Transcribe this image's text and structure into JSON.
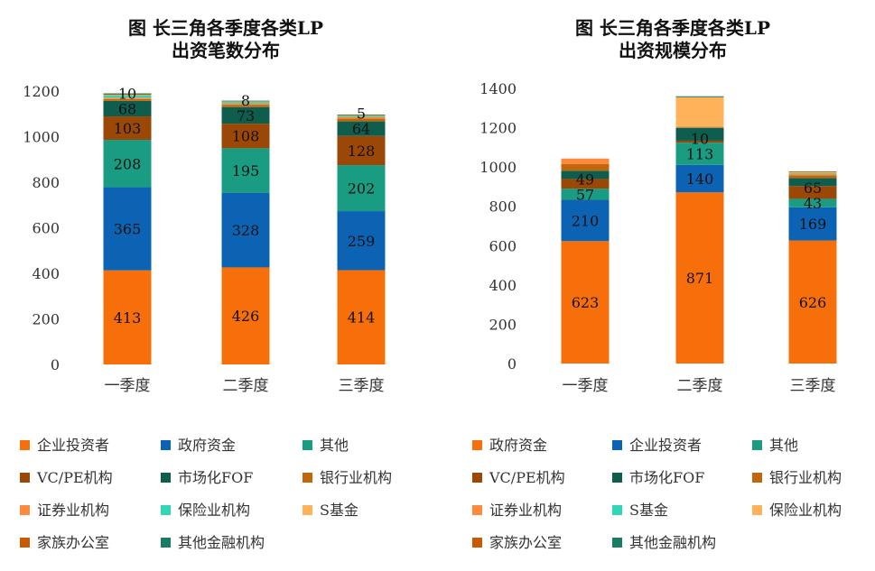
{
  "chart_data": [
    {
      "type": "bar",
      "stacked": true,
      "title": [
        "图 长三角各季度各类LP",
        "出资笔数分布"
      ],
      "categories": [
        "一季度",
        "二季度",
        "三季度"
      ],
      "ylim": [
        0,
        1200
      ],
      "yticks": [
        0,
        200,
        400,
        600,
        800,
        1000,
        1200
      ],
      "grid": false,
      "legend_position": "bottom",
      "series": [
        {
          "name": "企业投资者",
          "color": "#f76f0a",
          "values": [
            413,
            426,
            414
          ],
          "labels": [
            true,
            true,
            true
          ]
        },
        {
          "name": "政府资金",
          "color": "#0c63b3",
          "values": [
            365,
            328,
            259
          ],
          "labels": [
            true,
            true,
            true
          ]
        },
        {
          "name": "其他",
          "color": "#1a9c82",
          "values": [
            208,
            195,
            202
          ],
          "labels": [
            true,
            true,
            true
          ]
        },
        {
          "name": "VC/PE机构",
          "color": "#9b4806",
          "values": [
            103,
            108,
            128
          ],
          "labels": [
            true,
            true,
            true
          ]
        },
        {
          "name": "市场化FOF",
          "color": "#0f5e4d",
          "values": [
            68,
            73,
            64
          ],
          "labels": [
            true,
            true,
            true
          ]
        },
        {
          "name": "银行业机构",
          "color": "#c0660c",
          "values": [
            8,
            10,
            12
          ],
          "labels": [
            false,
            false,
            false
          ]
        },
        {
          "name": "证券业机构",
          "color": "#ff8a3d",
          "values": [
            6,
            5,
            6
          ],
          "labels": [
            false,
            false,
            false
          ]
        },
        {
          "name": "保险业机构",
          "color": "#2fd6b8",
          "values": [
            10,
            8,
            5
          ],
          "labels": [
            true,
            true,
            true
          ]
        },
        {
          "name": "S基金",
          "color": "#ffb25a",
          "values": [
            2,
            1,
            2
          ],
          "labels": [
            false,
            false,
            false
          ]
        },
        {
          "name": "家族办公室",
          "color": "#c85a02",
          "values": [
            3,
            2,
            3
          ],
          "labels": [
            false,
            false,
            false
          ]
        },
        {
          "name": "其他金融机构",
          "color": "#1b7c66",
          "values": [
            4,
            2,
            2
          ],
          "labels": [
            false,
            false,
            false
          ]
        }
      ]
    },
    {
      "type": "bar",
      "stacked": true,
      "title": [
        "图 长三角各季度各类LP",
        "出资规模分布"
      ],
      "categories": [
        "一季度",
        "二季度",
        "三季度"
      ],
      "ylim": [
        0,
        1400
      ],
      "yticks": [
        0,
        200,
        400,
        600,
        800,
        1000,
        1200,
        1400
      ],
      "grid": false,
      "legend_position": "bottom",
      "series": [
        {
          "name": "政府资金",
          "color": "#f76f0a",
          "values": [
            623,
            871,
            626
          ],
          "labels": [
            true,
            true,
            true
          ]
        },
        {
          "name": "企业投资者",
          "color": "#0c63b3",
          "values": [
            210,
            140,
            169
          ],
          "labels": [
            true,
            true,
            true
          ]
        },
        {
          "name": "其他",
          "color": "#1a9c82",
          "values": [
            57,
            113,
            43
          ],
          "labels": [
            true,
            true,
            true
          ]
        },
        {
          "name": "VC/PE机构",
          "color": "#9b4806",
          "values": [
            49,
            10,
            65
          ],
          "labels": [
            true,
            true,
            true
          ]
        },
        {
          "name": "市场化FOF",
          "color": "#0f5e4d",
          "values": [
            42,
            64,
            41
          ],
          "labels": [
            false,
            false,
            false
          ]
        },
        {
          "name": "银行业机构",
          "color": "#c0660c",
          "values": [
            35,
            3,
            14
          ],
          "labels": [
            false,
            false,
            false
          ]
        },
        {
          "name": "证券业机构",
          "color": "#ff8a3d",
          "values": [
            27,
            5,
            8
          ],
          "labels": [
            false,
            false,
            false
          ]
        },
        {
          "name": "S基金",
          "color": "#2fd6b8",
          "values": [
            0,
            2,
            3
          ],
          "labels": [
            false,
            false,
            false
          ]
        },
        {
          "name": "保险业机构",
          "color": "#ffb25a",
          "values": [
            0,
            147,
            5
          ],
          "labels": [
            false,
            false,
            false
          ]
        },
        {
          "name": "家族办公室",
          "color": "#c85a02",
          "values": [
            0,
            0,
            2
          ],
          "labels": [
            false,
            false,
            false
          ]
        },
        {
          "name": "其他金融机构",
          "color": "#1b7c66",
          "values": [
            0,
            5,
            2
          ],
          "labels": [
            false,
            false,
            false
          ]
        }
      ]
    }
  ]
}
